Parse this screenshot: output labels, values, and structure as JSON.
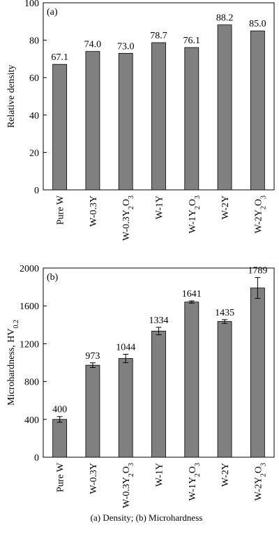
{
  "chart_data": [
    {
      "type": "bar",
      "label": "(a)",
      "ylabel": "Relative density",
      "categories": [
        "Pure W",
        "W-0.3Y",
        "W-0.3Y2O3",
        "W-1Y",
        "W-1Y2O3",
        "W-2Y",
        "W-2Y2O3"
      ],
      "values": [
        67.1,
        74.0,
        73.0,
        78.7,
        76.1,
        88.2,
        85.0
      ],
      "value_labels": [
        "67.1",
        "74.0",
        "73.0",
        "78.7",
        "76.1",
        "88.2",
        "85.0"
      ],
      "color": "#808080",
      "ylim": [
        0,
        100
      ],
      "yticks": [
        0,
        20,
        40,
        60,
        80,
        100
      ]
    },
    {
      "type": "bar",
      "label": "(b)",
      "ylabel": "Microhardness, HV0.2",
      "categories": [
        "Pure W",
        "W-0.3Y",
        "W-0.3Y2O3",
        "W-1Y",
        "W-1Y2O3",
        "W-2Y",
        "W-2Y2O3"
      ],
      "values": [
        400,
        973,
        1044,
        1334,
        1641,
        1435,
        1789
      ],
      "errors": [
        30,
        25,
        45,
        40,
        12,
        20,
        110
      ],
      "color": "#808080",
      "ylim": [
        0,
        2000
      ],
      "yticks": [
        0,
        400,
        800,
        1200,
        1600,
        2000
      ]
    }
  ],
  "caption": "(a) Density; (b) Microhardness"
}
